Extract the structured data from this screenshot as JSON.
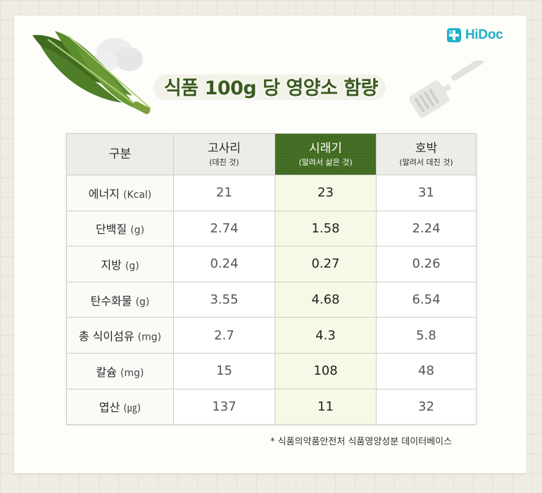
{
  "brand": {
    "name": "HiDoc",
    "color": "#1db0c9"
  },
  "title": "식품 100g 당 영양소 함량",
  "table": {
    "header_label": "구분",
    "columns": [
      {
        "name": "고사리",
        "sub": "(데친 것)"
      },
      {
        "name": "시래기",
        "sub": "(말려서 삶은 것)"
      },
      {
        "name": "호박",
        "sub": "(말려서 데친 것)"
      }
    ],
    "rows": [
      {
        "label": "에너지",
        "unit": "(Kcal)",
        "values": [
          "21",
          "23",
          "31"
        ]
      },
      {
        "label": "단백질",
        "unit": "(g)",
        "values": [
          "2.74",
          "1.58",
          "2.24"
        ]
      },
      {
        "label": "지방",
        "unit": "(g)",
        "values": [
          "0.24",
          "0.27",
          "0.26"
        ]
      },
      {
        "label": "탄수화물",
        "unit": "(g)",
        "values": [
          "3.55",
          "4.68",
          "6.54"
        ]
      },
      {
        "label": "총 식이섬유",
        "unit": "(mg)",
        "values": [
          "2.7",
          "4.3",
          "5.8"
        ]
      },
      {
        "label": "칼슘",
        "unit": "(mg)",
        "values": [
          "15",
          "108",
          "48"
        ]
      },
      {
        "label": "엽산",
        "unit": "(㎍)",
        "values": [
          "137",
          "11",
          "32"
        ]
      }
    ]
  },
  "note": "*  식품의약품안전처 식품영양성분 데이터베이스",
  "colors": {
    "highlight_header": "#426b22",
    "highlight_cell": "#f5f9e6",
    "title": "#3b5a1e"
  },
  "icons": [
    "hidoc-logo-icon",
    "leaves-illustration",
    "spatula-illustration"
  ]
}
